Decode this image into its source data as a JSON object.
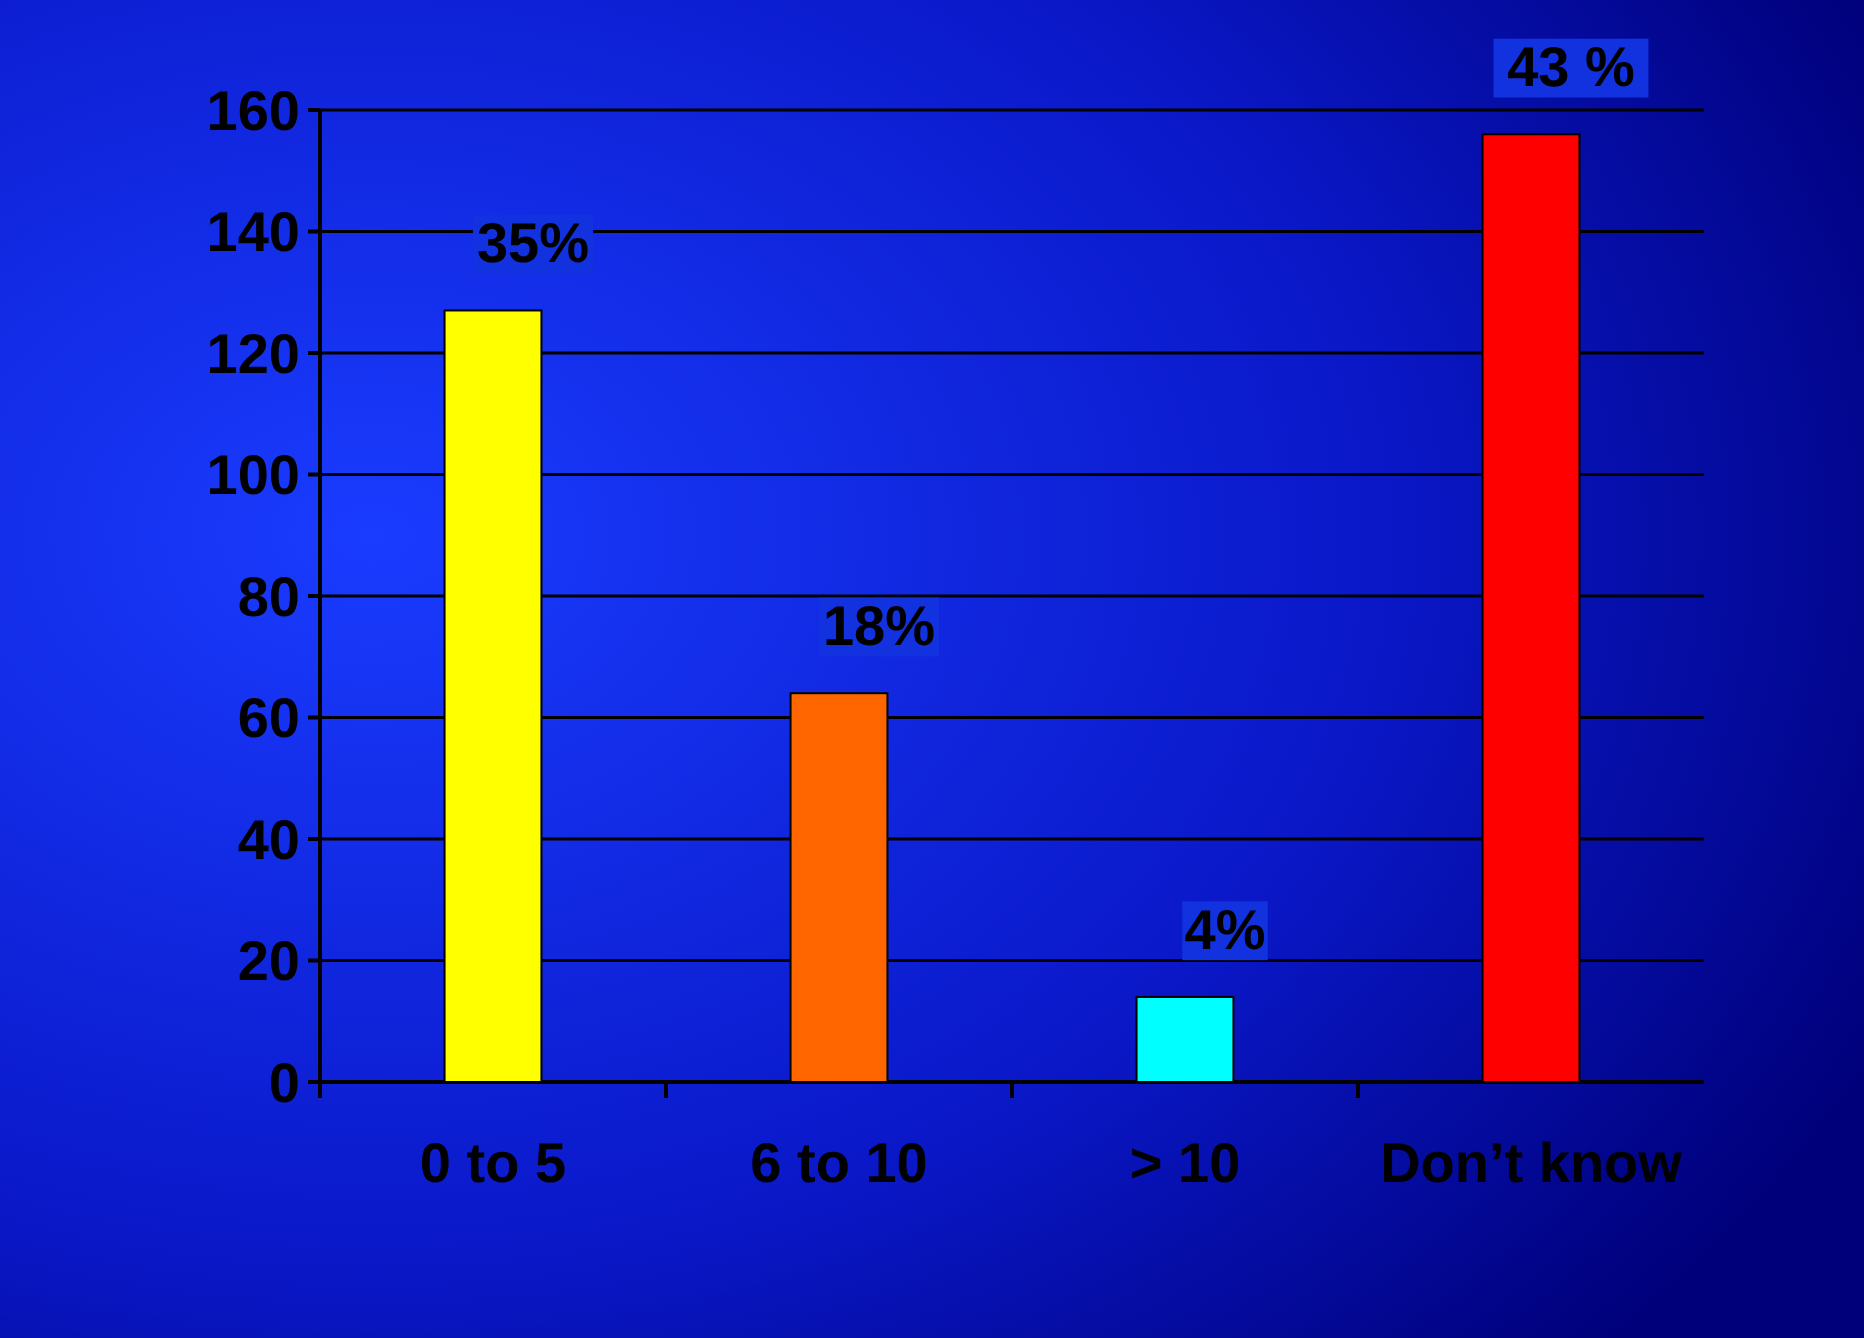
{
  "chart_data": {
    "type": "bar",
    "categories": [
      "0 to 5",
      "6 to 10",
      "> 10",
      "Don’t know"
    ],
    "values": [
      127,
      64,
      14,
      156
    ],
    "colors": [
      "#ffff00",
      "#ff6600",
      "#00ffff",
      "#ff0000"
    ],
    "annotations": [
      {
        "text": "35%",
        "x": "0 to 5",
        "y": 127
      },
      {
        "text": "18%",
        "x": "6 to 10",
        "y": 64
      },
      {
        "text": "4%",
        "x": "> 10",
        "y": 14
      },
      {
        "text": "43 %",
        "x": "Don’t know",
        "y": 156
      }
    ],
    "ylim": [
      0,
      160
    ],
    "yticks": [
      0,
      20,
      40,
      60,
      80,
      100,
      120,
      140,
      160
    ],
    "grid": "y"
  }
}
